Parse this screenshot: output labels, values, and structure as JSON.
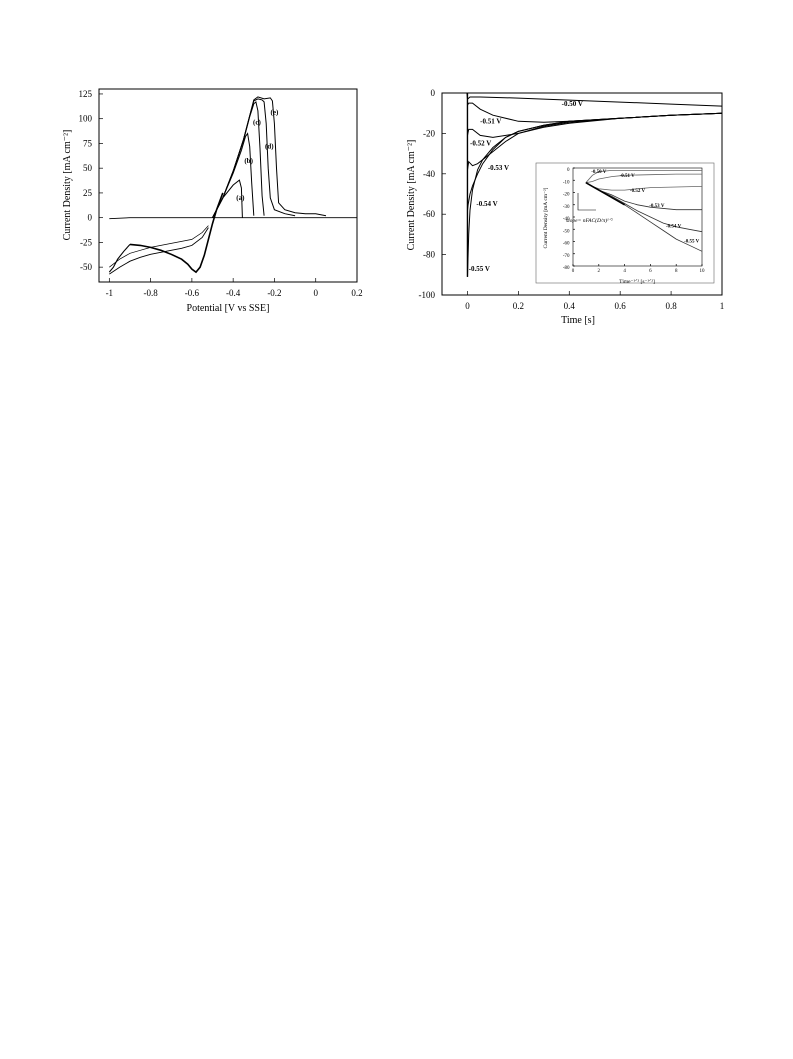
{
  "chart_data": [
    {
      "type": "line",
      "name": "cyclic-voltammogram",
      "xlabel": "Potential [V vs SSE]",
      "ylabel": "Current Density [mA cm⁻²]",
      "xlim": [
        -1.05,
        0.2
      ],
      "ylim": [
        -65,
        130
      ],
      "xticks": [
        "-1",
        "-0.8",
        "-0.6",
        "-0.4",
        "-0.2",
        "0",
        "0.2"
      ],
      "yticks": [
        "125",
        "100",
        "75",
        "50",
        "25",
        "0",
        "-25",
        "-50"
      ],
      "curve_labels": [
        {
          "text": "(a)",
          "x": -0.365,
          "y": 18
        },
        {
          "text": "(b)",
          "x": -0.325,
          "y": 55
        },
        {
          "text": "(c)",
          "x": -0.285,
          "y": 94
        },
        {
          "text": "(d)",
          "x": -0.225,
          "y": 70
        },
        {
          "text": "(e)",
          "x": -0.2,
          "y": 104
        }
      ],
      "cathodic_branch": {
        "x": [
          -0.9,
          -0.85,
          -0.8,
          -0.75,
          -0.7,
          -0.65,
          -0.62,
          -0.6,
          -0.58,
          -0.56,
          -0.54,
          -0.52,
          -0.5,
          -0.48,
          -0.45
        ],
        "y": [
          -27,
          -28,
          -30,
          -33,
          -37,
          -42,
          -47,
          -52,
          -55,
          -50,
          -38,
          -22,
          -6,
          8,
          25
        ]
      },
      "return_branch": {
        "x": [
          -1.0,
          -0.98,
          -0.96,
          -0.93,
          -0.9
        ],
        "y": [
          -55,
          -50,
          -42,
          -34,
          -27
        ]
      },
      "baseline": {
        "x": [
          -1.0,
          -0.9,
          -0.8,
          -0.7,
          -0.6,
          -0.5,
          -0.4,
          -0.3,
          -0.2,
          -0.1,
          0.0,
          0.1,
          0.2
        ],
        "y": [
          -1,
          0,
          0,
          0,
          0,
          0,
          0,
          0,
          0,
          0,
          0,
          0,
          0
        ]
      },
      "forward_sweep": {
        "x": [
          -1.0,
          -0.95,
          -0.9,
          -0.85,
          -0.8,
          -0.75,
          -0.7,
          -0.65,
          -0.6,
          -0.55,
          -0.52
        ],
        "y": [
          -57,
          -50,
          -44,
          -40,
          -37,
          -35,
          -33,
          -31,
          -28,
          -20,
          -10
        ]
      },
      "forward_sweep_2": {
        "x": [
          -1.0,
          -0.95,
          -0.9,
          -0.85,
          -0.8,
          -0.75,
          -0.7,
          -0.65,
          -0.6,
          -0.55,
          -0.52
        ],
        "y": [
          -50,
          -42,
          -36,
          -33,
          -30,
          -28,
          -26,
          -24,
          -22,
          -15,
          -8
        ]
      },
      "series": [
        {
          "name": "(a)",
          "x": [
            -0.5,
            -0.45,
            -0.4,
            -0.37,
            -0.36,
            -0.355
          ],
          "y": [
            0,
            20,
            33,
            38,
            30,
            0
          ]
        },
        {
          "name": "(b)",
          "x": [
            -0.5,
            -0.45,
            -0.4,
            -0.36,
            -0.34,
            -0.33,
            -0.32,
            -0.31,
            -0.3
          ],
          "y": [
            0,
            20,
            45,
            68,
            82,
            85,
            72,
            35,
            2
          ]
        },
        {
          "name": "(c)",
          "x": [
            -0.5,
            -0.45,
            -0.4,
            -0.35,
            -0.32,
            -0.3,
            -0.29,
            -0.28,
            -0.27,
            -0.26,
            -0.25
          ],
          "y": [
            0,
            20,
            47,
            78,
            102,
            115,
            117,
            108,
            70,
            22,
            2
          ]
        },
        {
          "name": "(d)",
          "x": [
            -0.5,
            -0.45,
            -0.4,
            -0.35,
            -0.32,
            -0.3,
            -0.28,
            -0.26,
            -0.25,
            -0.24,
            -0.23,
            -0.22,
            -0.2,
            -0.15,
            -0.1
          ],
          "y": [
            0,
            20,
            47,
            79,
            103,
            118,
            120,
            119,
            117,
            95,
            50,
            20,
            8,
            4,
            2
          ]
        },
        {
          "name": "(e)",
          "x": [
            -0.5,
            -0.45,
            -0.4,
            -0.35,
            -0.32,
            -0.3,
            -0.28,
            -0.25,
            -0.22,
            -0.21,
            -0.2,
            -0.19,
            -0.18,
            -0.15,
            -0.1,
            -0.05,
            0.0,
            0.05
          ],
          "y": [
            0,
            20,
            47,
            79,
            103,
            119,
            122,
            120,
            121,
            118,
            95,
            50,
            15,
            8,
            5,
            4,
            4,
            2
          ]
        }
      ]
    },
    {
      "type": "line",
      "name": "chronoamperometry",
      "xlabel": "Time [s]",
      "ylabel": "Current Density [mA cm⁻²]",
      "xlim": [
        -0.1,
        1
      ],
      "ylim": [
        -100,
        0
      ],
      "xticks": [
        "0",
        "0.2",
        "0.4",
        "0.6",
        "0.8",
        "1"
      ],
      "yticks": [
        "0",
        "-20",
        "-40",
        "-60",
        "-80",
        "-100"
      ],
      "series": [
        {
          "name": "-0.50 V",
          "x": [
            -0.1,
            -0.002,
            0.0,
            0.01,
            0.05,
            0.2,
            0.4,
            0.6,
            0.8,
            1.0
          ],
          "y": [
            0,
            0,
            -3,
            -2,
            -2,
            -2.5,
            -3.5,
            -4.5,
            -5.5,
            -6.5
          ]
        },
        {
          "name": "-0.51 V",
          "x": [
            0.0,
            0.005,
            0.02,
            0.05,
            0.1,
            0.2,
            0.3,
            0.4,
            0.6,
            0.8,
            1.0
          ],
          "y": [
            -6,
            -5,
            -5,
            -8,
            -11,
            -14,
            -14.5,
            -14,
            -12.5,
            -11,
            -10
          ]
        },
        {
          "name": "-0.52 V",
          "x": [
            0.0,
            0.005,
            0.02,
            0.05,
            0.1,
            0.2,
            0.3,
            0.4,
            0.6,
            0.8,
            1.0
          ],
          "y": [
            -21,
            -18,
            -18,
            -21,
            -22,
            -20,
            -17,
            -15,
            -12.5,
            -11,
            -10
          ]
        },
        {
          "name": "-0.53 V",
          "x": [
            0.0,
            0.005,
            0.02,
            0.04,
            0.06,
            0.1,
            0.15,
            0.2,
            0.3,
            0.4,
            0.6,
            0.8,
            1.0
          ],
          "y": [
            -38,
            -34,
            -36,
            -35,
            -33,
            -29,
            -24,
            -20,
            -16.5,
            -14.5,
            -12.5,
            -11,
            -10
          ]
        },
        {
          "name": "-0.54 V",
          "x": [
            0.0,
            0.003,
            0.01,
            0.02,
            0.04,
            0.06,
            0.1,
            0.15,
            0.2,
            0.3,
            0.4,
            0.6,
            0.8,
            1.0
          ],
          "y": [
            -58,
            -55,
            -50,
            -46,
            -40,
            -35,
            -28,
            -22,
            -19,
            -16,
            -14,
            -12.5,
            -11,
            -10
          ]
        },
        {
          "name": "-0.55 V",
          "x": [
            0.0,
            0.002,
            0.005,
            0.01,
            0.02,
            0.04,
            0.06,
            0.1,
            0.15,
            0.2,
            0.3,
            0.4,
            0.6,
            0.8,
            1.0
          ],
          "y": [
            -91,
            -82,
            -70,
            -58,
            -48,
            -38,
            -33,
            -27,
            -22,
            -19,
            -16,
            -14,
            -12.5,
            -11,
            -10
          ]
        }
      ],
      "labels": [
        {
          "text": "-0.50 V",
          "x": 0.37,
          "y": -6.5
        },
        {
          "text": "-0.51 V",
          "x": 0.05,
          "y": -15
        },
        {
          "text": "-0.52 V",
          "x": 0.01,
          "y": -26
        },
        {
          "text": "-0.53 V",
          "x": 0.08,
          "y": -38
        },
        {
          "text": "-0.54 V",
          "x": 0.035,
          "y": -56
        },
        {
          "text": "-0.55 V",
          "x": 0.005,
          "y": -88
        }
      ],
      "inset": {
        "type": "line",
        "xlabel": "Time⁻¹ᐟ² [s⁻¹ᐟ²]",
        "ylabel": "Current Density [mA cm⁻²]",
        "xlim": [
          0,
          10
        ],
        "ylim": [
          -80,
          0
        ],
        "xticks": [
          "0",
          "2",
          "4",
          "6",
          "8",
          "10"
        ],
        "yticks": [
          "0",
          "-10",
          "-20",
          "-30",
          "-40",
          "-50",
          "-60",
          "-70",
          "-80"
        ],
        "annotation": "slope= nFAC(D/π)¹ᐟ²",
        "series": [
          {
            "name": "-0.50 V",
            "x": [
              1,
              1.5,
              2,
              3,
              4,
              6,
              8,
              10
            ],
            "y": [
              -12,
              -6,
              -3,
              -2,
              -2,
              -2,
              -2,
              -2
            ]
          },
          {
            "name": "-0.51 V",
            "x": [
              1,
              1.5,
              2,
              3,
              4,
              6,
              8,
              10
            ],
            "y": [
              -12,
              -11,
              -9,
              -7,
              -6,
              -5.5,
              -5,
              -5
            ]
          },
          {
            "name": "-0.52 V",
            "x": [
              1,
              1.5,
              2,
              3,
              4,
              5,
              6,
              8,
              10
            ],
            "y": [
              -12,
              -15,
              -17,
              -18,
              -18,
              -17,
              -16,
              -15.5,
              -15
            ]
          },
          {
            "name": "-0.53 V",
            "x": [
              1,
              1.5,
              2,
              3,
              4,
              5,
              6,
              8,
              10
            ],
            "y": [
              -12,
              -15,
              -18,
              -22,
              -27,
              -30,
              -32,
              -34,
              -34
            ]
          },
          {
            "name": "-0.54 V",
            "x": [
              1,
              1.5,
              2,
              3,
              4,
              5,
              6,
              7,
              8,
              9,
              10
            ],
            "y": [
              -12,
              -15,
              -18,
              -23,
              -29,
              -35,
              -40,
              -45,
              -48,
              -50,
              -52
            ]
          },
          {
            "name": "-0.55 V",
            "x": [
              1,
              1.5,
              2,
              3,
              4,
              5,
              6,
              7,
              8,
              9,
              10
            ],
            "y": [
              -12,
              -15,
              -18,
              -24,
              -30,
              -37,
              -44,
              -51,
              -58,
              -63,
              -68
            ]
          }
        ],
        "labels": [
          {
            "text": "-0.50 V",
            "x": 2.0,
            "y": -4
          },
          {
            "text": "-0.51 V",
            "x": 4.2,
            "y": -7.5
          },
          {
            "text": "-0.52 V",
            "x": 5.0,
            "y": -19.5
          },
          {
            "text": "-0.53 V",
            "x": 6.5,
            "y": -32
          },
          {
            "text": "-0.54 V",
            "x": 7.8,
            "y": -48.5
          },
          {
            "text": "-0.55 V",
            "x": 9.2,
            "y": -61
          }
        ]
      }
    }
  ]
}
